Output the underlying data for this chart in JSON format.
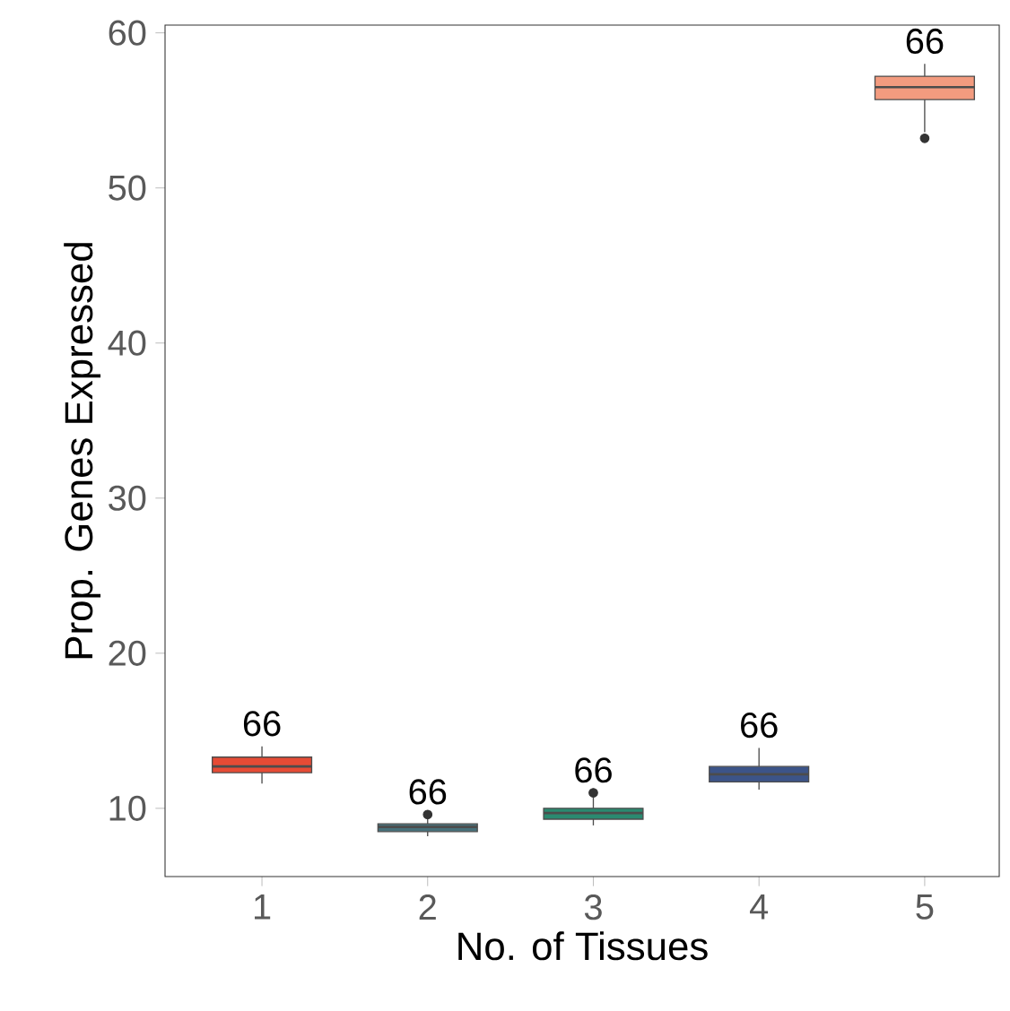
{
  "chart_data": {
    "type": "box",
    "xlabel": "No. of Tissues",
    "ylabel": "Prop. Genes Expressed",
    "categories": [
      "1",
      "2",
      "3",
      "4",
      "5"
    ],
    "colors": [
      "#e64b35",
      "#46707a",
      "#2a8a70",
      "#3c5488",
      "#f39b7f"
    ],
    "boxes": [
      {
        "low": 11.6,
        "q1": 12.3,
        "median": 12.7,
        "q3": 13.3,
        "high": 14.0
      },
      {
        "low": 8.2,
        "q1": 8.5,
        "median": 8.8,
        "q3": 9.0,
        "high": 9.4,
        "outliers": [
          9.6
        ]
      },
      {
        "low": 8.9,
        "q1": 9.3,
        "median": 9.7,
        "q3": 10.0,
        "high": 10.7,
        "outliers": [
          11.0
        ]
      },
      {
        "low": 11.2,
        "q1": 11.7,
        "median": 12.2,
        "q3": 12.7,
        "high": 13.9
      },
      {
        "low": 53.6,
        "q1": 55.7,
        "median": 56.5,
        "q3": 57.2,
        "high": 58.0,
        "outliers": [
          53.2
        ]
      }
    ],
    "annotations": [
      "66",
      "66",
      "66",
      "66",
      "66"
    ],
    "ylim": [
      5.6,
      60.5
    ],
    "yticks": [
      10,
      20,
      30,
      40,
      50,
      60
    ],
    "grid": false
  }
}
